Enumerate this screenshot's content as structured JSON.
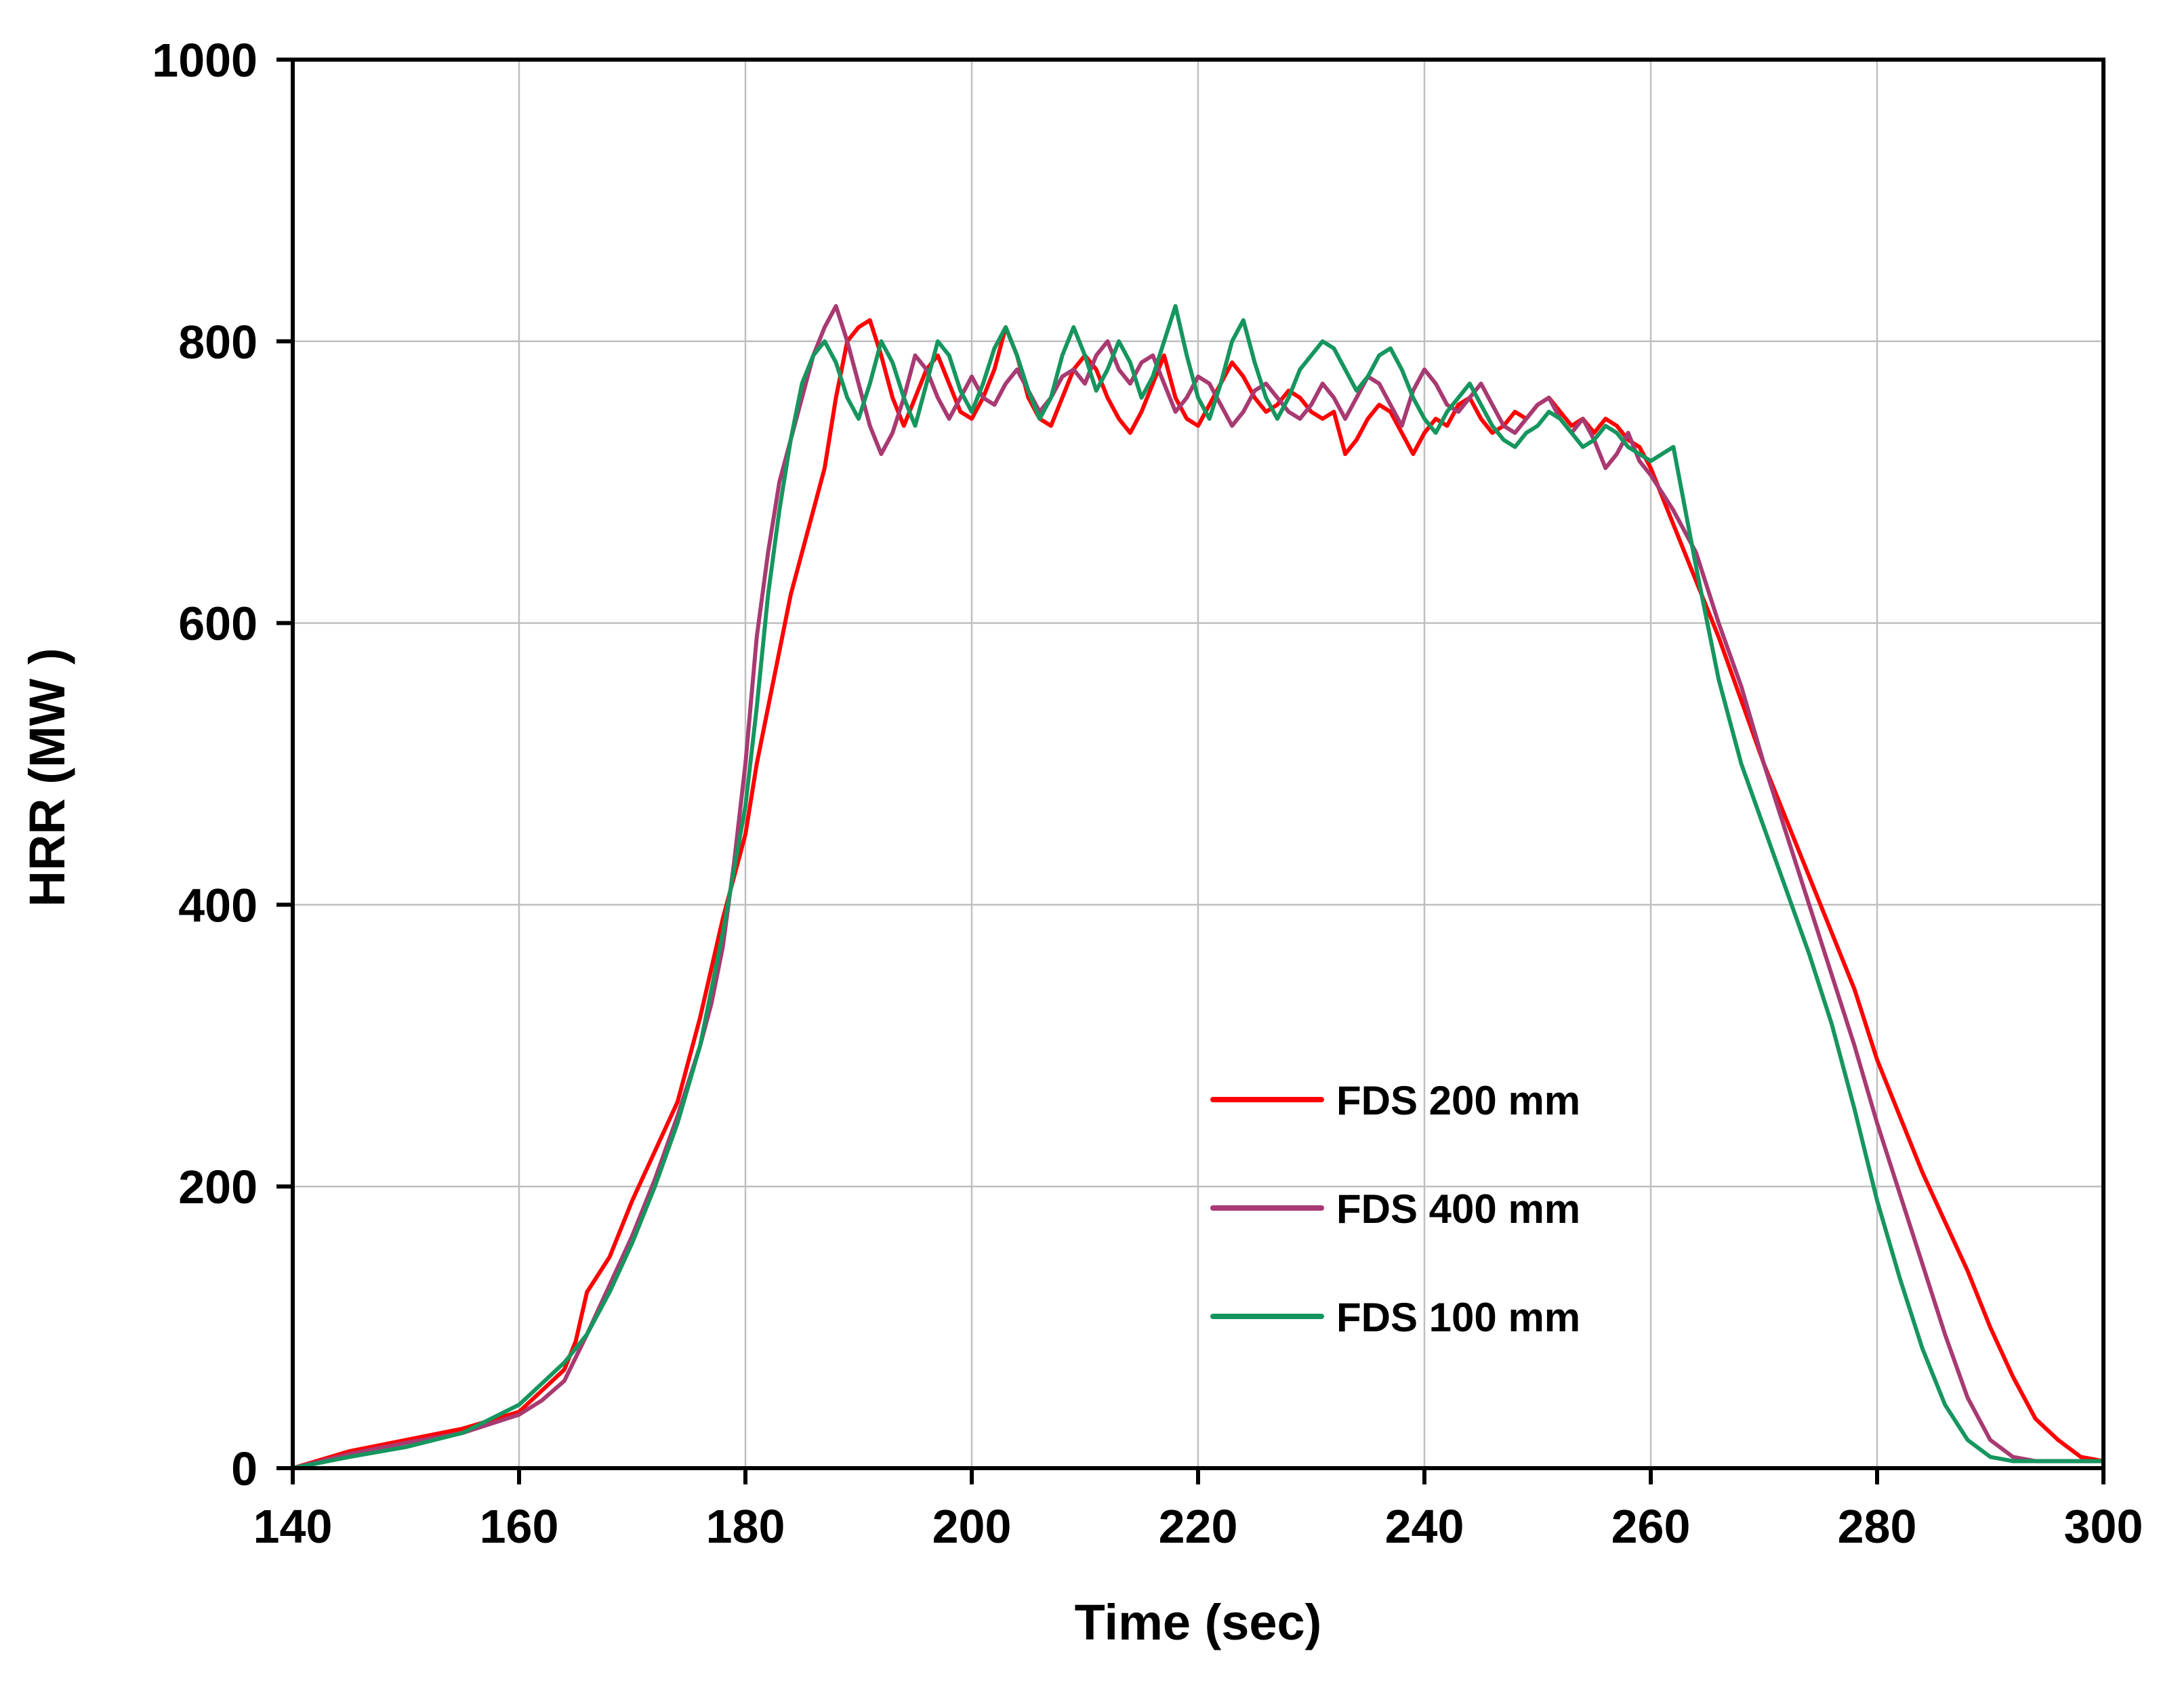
{
  "chart_data": {
    "type": "line",
    "title": "",
    "xlabel": "Time (sec)",
    "ylabel": "HRR (MW )",
    "xlim": [
      140,
      300
    ],
    "ylim": [
      0,
      1000
    ],
    "xticks": [
      140,
      160,
      180,
      200,
      220,
      240,
      260,
      280,
      300
    ],
    "yticks": [
      0,
      200,
      400,
      600,
      800,
      1000
    ],
    "xtick_labels": [
      "140",
      "160",
      "180",
      "200",
      "220",
      "240",
      "260",
      "280",
      "300"
    ],
    "ytick_labels": [
      "0",
      "200",
      "400",
      "600",
      "800",
      "1000"
    ],
    "grid": true,
    "legend_position": "lower-center inside plot",
    "series": [
      {
        "name": "FDS 200 mm",
        "color": "#ff0000",
        "x": [
          140,
          145,
          150,
          155,
          160,
          162,
          164,
          165,
          166,
          168,
          170,
          172,
          174,
          176,
          178,
          180,
          181,
          182,
          183,
          184,
          185,
          186,
          187,
          188,
          189,
          190,
          191,
          192,
          193,
          194,
          195,
          196,
          197,
          198,
          199,
          200,
          201,
          202,
          203,
          204,
          205,
          206,
          207,
          208,
          209,
          210,
          211,
          212,
          213,
          214,
          215,
          216,
          217,
          218,
          219,
          220,
          221,
          222,
          223,
          224,
          225,
          226,
          227,
          228,
          229,
          230,
          231,
          232,
          233,
          234,
          235,
          236,
          237,
          238,
          239,
          240,
          241,
          242,
          243,
          244,
          245,
          246,
          247,
          248,
          249,
          250,
          251,
          252,
          253,
          254,
          255,
          256,
          257,
          258,
          259,
          260,
          262,
          264,
          266,
          268,
          270,
          272,
          274,
          276,
          278,
          280,
          282,
          284,
          286,
          288,
          290,
          292,
          294,
          296,
          298,
          300
        ],
        "y": [
          0,
          12,
          20,
          28,
          40,
          55,
          70,
          90,
          125,
          150,
          190,
          225,
          260,
          320,
          390,
          450,
          500,
          540,
          580,
          620,
          650,
          680,
          710,
          760,
          800,
          810,
          815,
          790,
          760,
          740,
          760,
          780,
          790,
          770,
          750,
          745,
          760,
          780,
          810,
          790,
          760,
          745,
          740,
          760,
          780,
          790,
          780,
          760,
          745,
          735,
          750,
          770,
          790,
          760,
          745,
          740,
          755,
          770,
          785,
          775,
          760,
          750,
          755,
          765,
          760,
          750,
          745,
          750,
          720,
          730,
          745,
          755,
          750,
          735,
          720,
          735,
          745,
          740,
          755,
          760,
          745,
          735,
          740,
          750,
          745,
          755,
          760,
          750,
          740,
          745,
          735,
          745,
          740,
          730,
          725,
          710,
          670,
          630,
          590,
          545,
          500,
          460,
          420,
          380,
          340,
          290,
          250,
          210,
          175,
          140,
          100,
          65,
          35,
          20,
          8,
          5
        ]
      },
      {
        "name": "FDS 400 mm",
        "color": "#a83a72",
        "x": [
          140,
          145,
          150,
          155,
          160,
          162,
          164,
          166,
          168,
          170,
          172,
          174,
          176,
          177,
          178,
          179,
          180,
          181,
          182,
          183,
          184,
          185,
          186,
          187,
          188,
          189,
          190,
          191,
          192,
          193,
          194,
          195,
          196,
          197,
          198,
          199,
          200,
          201,
          202,
          203,
          204,
          205,
          206,
          207,
          208,
          209,
          210,
          211,
          212,
          213,
          214,
          215,
          216,
          217,
          218,
          219,
          220,
          221,
          222,
          223,
          224,
          225,
          226,
          227,
          228,
          229,
          230,
          231,
          232,
          233,
          234,
          235,
          236,
          237,
          238,
          239,
          240,
          241,
          242,
          243,
          244,
          245,
          246,
          247,
          248,
          249,
          250,
          251,
          252,
          253,
          254,
          255,
          256,
          257,
          258,
          259,
          260,
          262,
          264,
          266,
          268,
          270,
          272,
          274,
          276,
          278,
          280,
          282,
          284,
          286,
          288,
          290,
          292,
          294,
          296,
          298,
          300
        ],
        "y": [
          0,
          10,
          18,
          25,
          38,
          48,
          62,
          95,
          130,
          165,
          205,
          250,
          300,
          330,
          370,
          430,
          500,
          590,
          650,
          700,
          730,
          760,
          790,
          810,
          825,
          800,
          770,
          740,
          720,
          735,
          760,
          790,
          780,
          760,
          745,
          760,
          775,
          760,
          755,
          770,
          780,
          765,
          750,
          760,
          775,
          780,
          770,
          790,
          800,
          780,
          770,
          785,
          790,
          770,
          750,
          760,
          775,
          770,
          755,
          740,
          750,
          765,
          770,
          760,
          750,
          745,
          755,
          770,
          760,
          745,
          760,
          775,
          770,
          755,
          740,
          765,
          780,
          770,
          755,
          750,
          760,
          770,
          755,
          740,
          735,
          745,
          755,
          760,
          745,
          735,
          745,
          730,
          710,
          720,
          735,
          715,
          705,
          680,
          650,
          600,
          555,
          500,
          450,
          400,
          350,
          300,
          245,
          195,
          145,
          95,
          50,
          20,
          8,
          5,
          5,
          5,
          5
        ]
      },
      {
        "name": "FDS 100 mm",
        "color": "#16965f",
        "x": [
          140,
          145,
          150,
          155,
          160,
          162,
          164,
          166,
          168,
          170,
          172,
          174,
          176,
          178,
          180,
          181,
          182,
          183,
          184,
          185,
          186,
          187,
          188,
          189,
          190,
          191,
          192,
          193,
          194,
          195,
          196,
          197,
          198,
          199,
          200,
          201,
          202,
          203,
          204,
          205,
          206,
          207,
          208,
          209,
          210,
          211,
          212,
          213,
          214,
          215,
          216,
          217,
          218,
          219,
          220,
          221,
          222,
          223,
          224,
          225,
          226,
          227,
          228,
          229,
          230,
          231,
          232,
          233,
          234,
          235,
          236,
          237,
          238,
          239,
          240,
          241,
          242,
          243,
          244,
          245,
          246,
          247,
          248,
          249,
          250,
          251,
          252,
          253,
          254,
          255,
          256,
          257,
          258,
          259,
          260,
          261,
          262,
          264,
          266,
          268,
          270,
          272,
          274,
          276,
          278,
          280,
          282,
          284,
          286,
          288,
          290,
          292,
          294,
          296,
          298,
          300
        ],
        "y": [
          0,
          8,
          15,
          25,
          45,
          60,
          75,
          95,
          125,
          160,
          200,
          245,
          300,
          380,
          470,
          540,
          620,
          680,
          730,
          770,
          790,
          800,
          785,
          760,
          745,
          770,
          800,
          785,
          760,
          740,
          770,
          800,
          790,
          765,
          750,
          770,
          795,
          810,
          790,
          765,
          745,
          760,
          790,
          810,
          790,
          765,
          780,
          800,
          785,
          760,
          775,
          800,
          825,
          790,
          760,
          745,
          770,
          800,
          815,
          785,
          760,
          745,
          760,
          780,
          790,
          800,
          795,
          780,
          765,
          775,
          790,
          795,
          780,
          760,
          745,
          735,
          750,
          760,
          770,
          755,
          740,
          730,
          725,
          735,
          740,
          750,
          745,
          735,
          725,
          730,
          740,
          735,
          725,
          720,
          715,
          720,
          725,
          640,
          560,
          500,
          455,
          410,
          365,
          315,
          255,
          190,
          135,
          85,
          45,
          20,
          8,
          5,
          5,
          5,
          5,
          5
        ]
      }
    ]
  }
}
